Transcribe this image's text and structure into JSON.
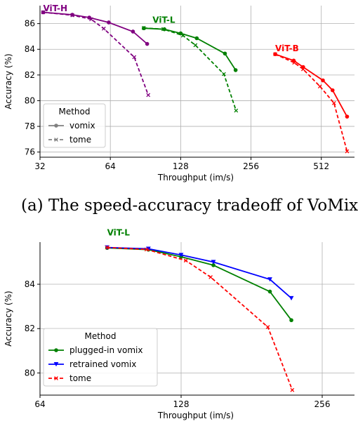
{
  "caption": "(a) The speed-accuracy tradeoff of VoMix and",
  "chart_data": [
    {
      "type": "line",
      "xscale": "log2",
      "xlabel": "Throughput (im/s)",
      "ylabel": "Accuracy (%)",
      "xticks": [
        32,
        64,
        128,
        256,
        512
      ],
      "yticks": [
        76,
        78,
        80,
        82,
        84,
        86
      ],
      "xlim": [
        32,
        710
      ],
      "ylim": [
        75.6,
        87.4
      ],
      "grid": true,
      "legend": {
        "title": "Method",
        "placement": "lower-left",
        "entries": [
          {
            "label": "vomix",
            "color": "#808080",
            "dash": false,
            "marker": "circle"
          },
          {
            "label": "tome",
            "color": "#808080",
            "dash": true,
            "marker": "x"
          }
        ]
      },
      "annotations": [
        {
          "text": "ViT-H",
          "color": "#800080",
          "x": 33,
          "y": 86.95
        },
        {
          "text": "ViT-L",
          "color": "#008000",
          "x": 97,
          "y": 86.05
        },
        {
          "text": "ViT-B",
          "color": "#ff0000",
          "x": 325,
          "y": 83.85
        }
      ],
      "series": [
        {
          "group": "ViT-H",
          "method": "vomix",
          "color": "#800080",
          "dash": false,
          "marker": "circle",
          "x": [
            33,
            44,
            52,
            63,
            80,
            92
          ],
          "y": [
            86.88,
            86.69,
            86.47,
            86.09,
            85.38,
            84.42
          ]
        },
        {
          "group": "ViT-H",
          "method": "tome",
          "color": "#800080",
          "dash": true,
          "marker": "x",
          "x": [
            33,
            44,
            53,
            60,
            81,
            93
          ],
          "y": [
            86.88,
            86.65,
            86.34,
            85.61,
            83.39,
            80.44
          ]
        },
        {
          "group": "ViT-L",
          "method": "vomix",
          "color": "#008000",
          "dash": false,
          "marker": "circle",
          "x": [
            89,
            109,
            128,
            150,
            198,
            220
          ],
          "y": [
            85.64,
            85.56,
            85.24,
            84.86,
            83.67,
            82.38
          ]
        },
        {
          "group": "ViT-L",
          "method": "tome",
          "color": "#008000",
          "dash": true,
          "marker": "x",
          "x": [
            89,
            108,
            131,
            148,
            196,
            221
          ],
          "y": [
            85.66,
            85.57,
            85.07,
            84.32,
            82.07,
            79.23
          ]
        },
        {
          "group": "ViT-B",
          "method": "vomix",
          "color": "#ff0000",
          "dash": false,
          "marker": "circle",
          "x": [
            325,
            390,
            428,
            520,
            572,
            660
          ],
          "y": [
            83.62,
            83.12,
            82.62,
            81.58,
            80.81,
            78.76
          ]
        },
        {
          "group": "ViT-B",
          "method": "tome",
          "color": "#ff0000",
          "dash": true,
          "marker": "x",
          "x": [
            325,
            392,
            428,
            505,
            580,
            660
          ],
          "y": [
            83.62,
            82.96,
            82.45,
            81.11,
            79.81,
            76.06
          ]
        }
      ]
    },
    {
      "type": "line",
      "xscale": "log2",
      "xlabel": "Throughput (im/s)",
      "ylabel": "Accuracy (%)",
      "xticks": [
        64,
        128,
        256
      ],
      "yticks": [
        80,
        82,
        84
      ],
      "xlim": [
        64,
        300
      ],
      "ylim": [
        79.0,
        85.9
      ],
      "grid": true,
      "legend": {
        "title": "Method",
        "placement": "lower-left",
        "entries": [
          {
            "label": "plugged-in vomix",
            "color": "#008000",
            "dash": false,
            "marker": "circle"
          },
          {
            "label": "retrained vomix",
            "color": "#0000ff",
            "dash": false,
            "marker": "triangle-down"
          },
          {
            "label": "tome",
            "color": "#ff0000",
            "dash": true,
            "marker": "x"
          }
        ]
      },
      "annotations": [
        {
          "text": "ViT-L",
          "color": "#008000",
          "x": 89,
          "y": 86.2
        }
      ],
      "series": [
        {
          "name": "plugged-in vomix",
          "color": "#008000",
          "dash": false,
          "marker": "circle",
          "x": [
            89,
            109,
            128,
            150,
            198,
            220
          ],
          "y": [
            85.64,
            85.56,
            85.24,
            84.86,
            83.67,
            82.38
          ]
        },
        {
          "name": "retrained vomix",
          "color": "#0000ff",
          "dash": false,
          "marker": "triangle-down",
          "x": [
            89,
            109,
            128,
            150,
            198,
            220
          ],
          "y": [
            85.66,
            85.6,
            85.32,
            85.0,
            84.22,
            83.37
          ]
        },
        {
          "name": "tome",
          "color": "#ff0000",
          "dash": true,
          "marker": "x",
          "x": [
            89,
            108,
            131,
            148,
            196,
            221
          ],
          "y": [
            85.66,
            85.57,
            85.07,
            84.32,
            82.07,
            79.23
          ]
        }
      ]
    }
  ]
}
